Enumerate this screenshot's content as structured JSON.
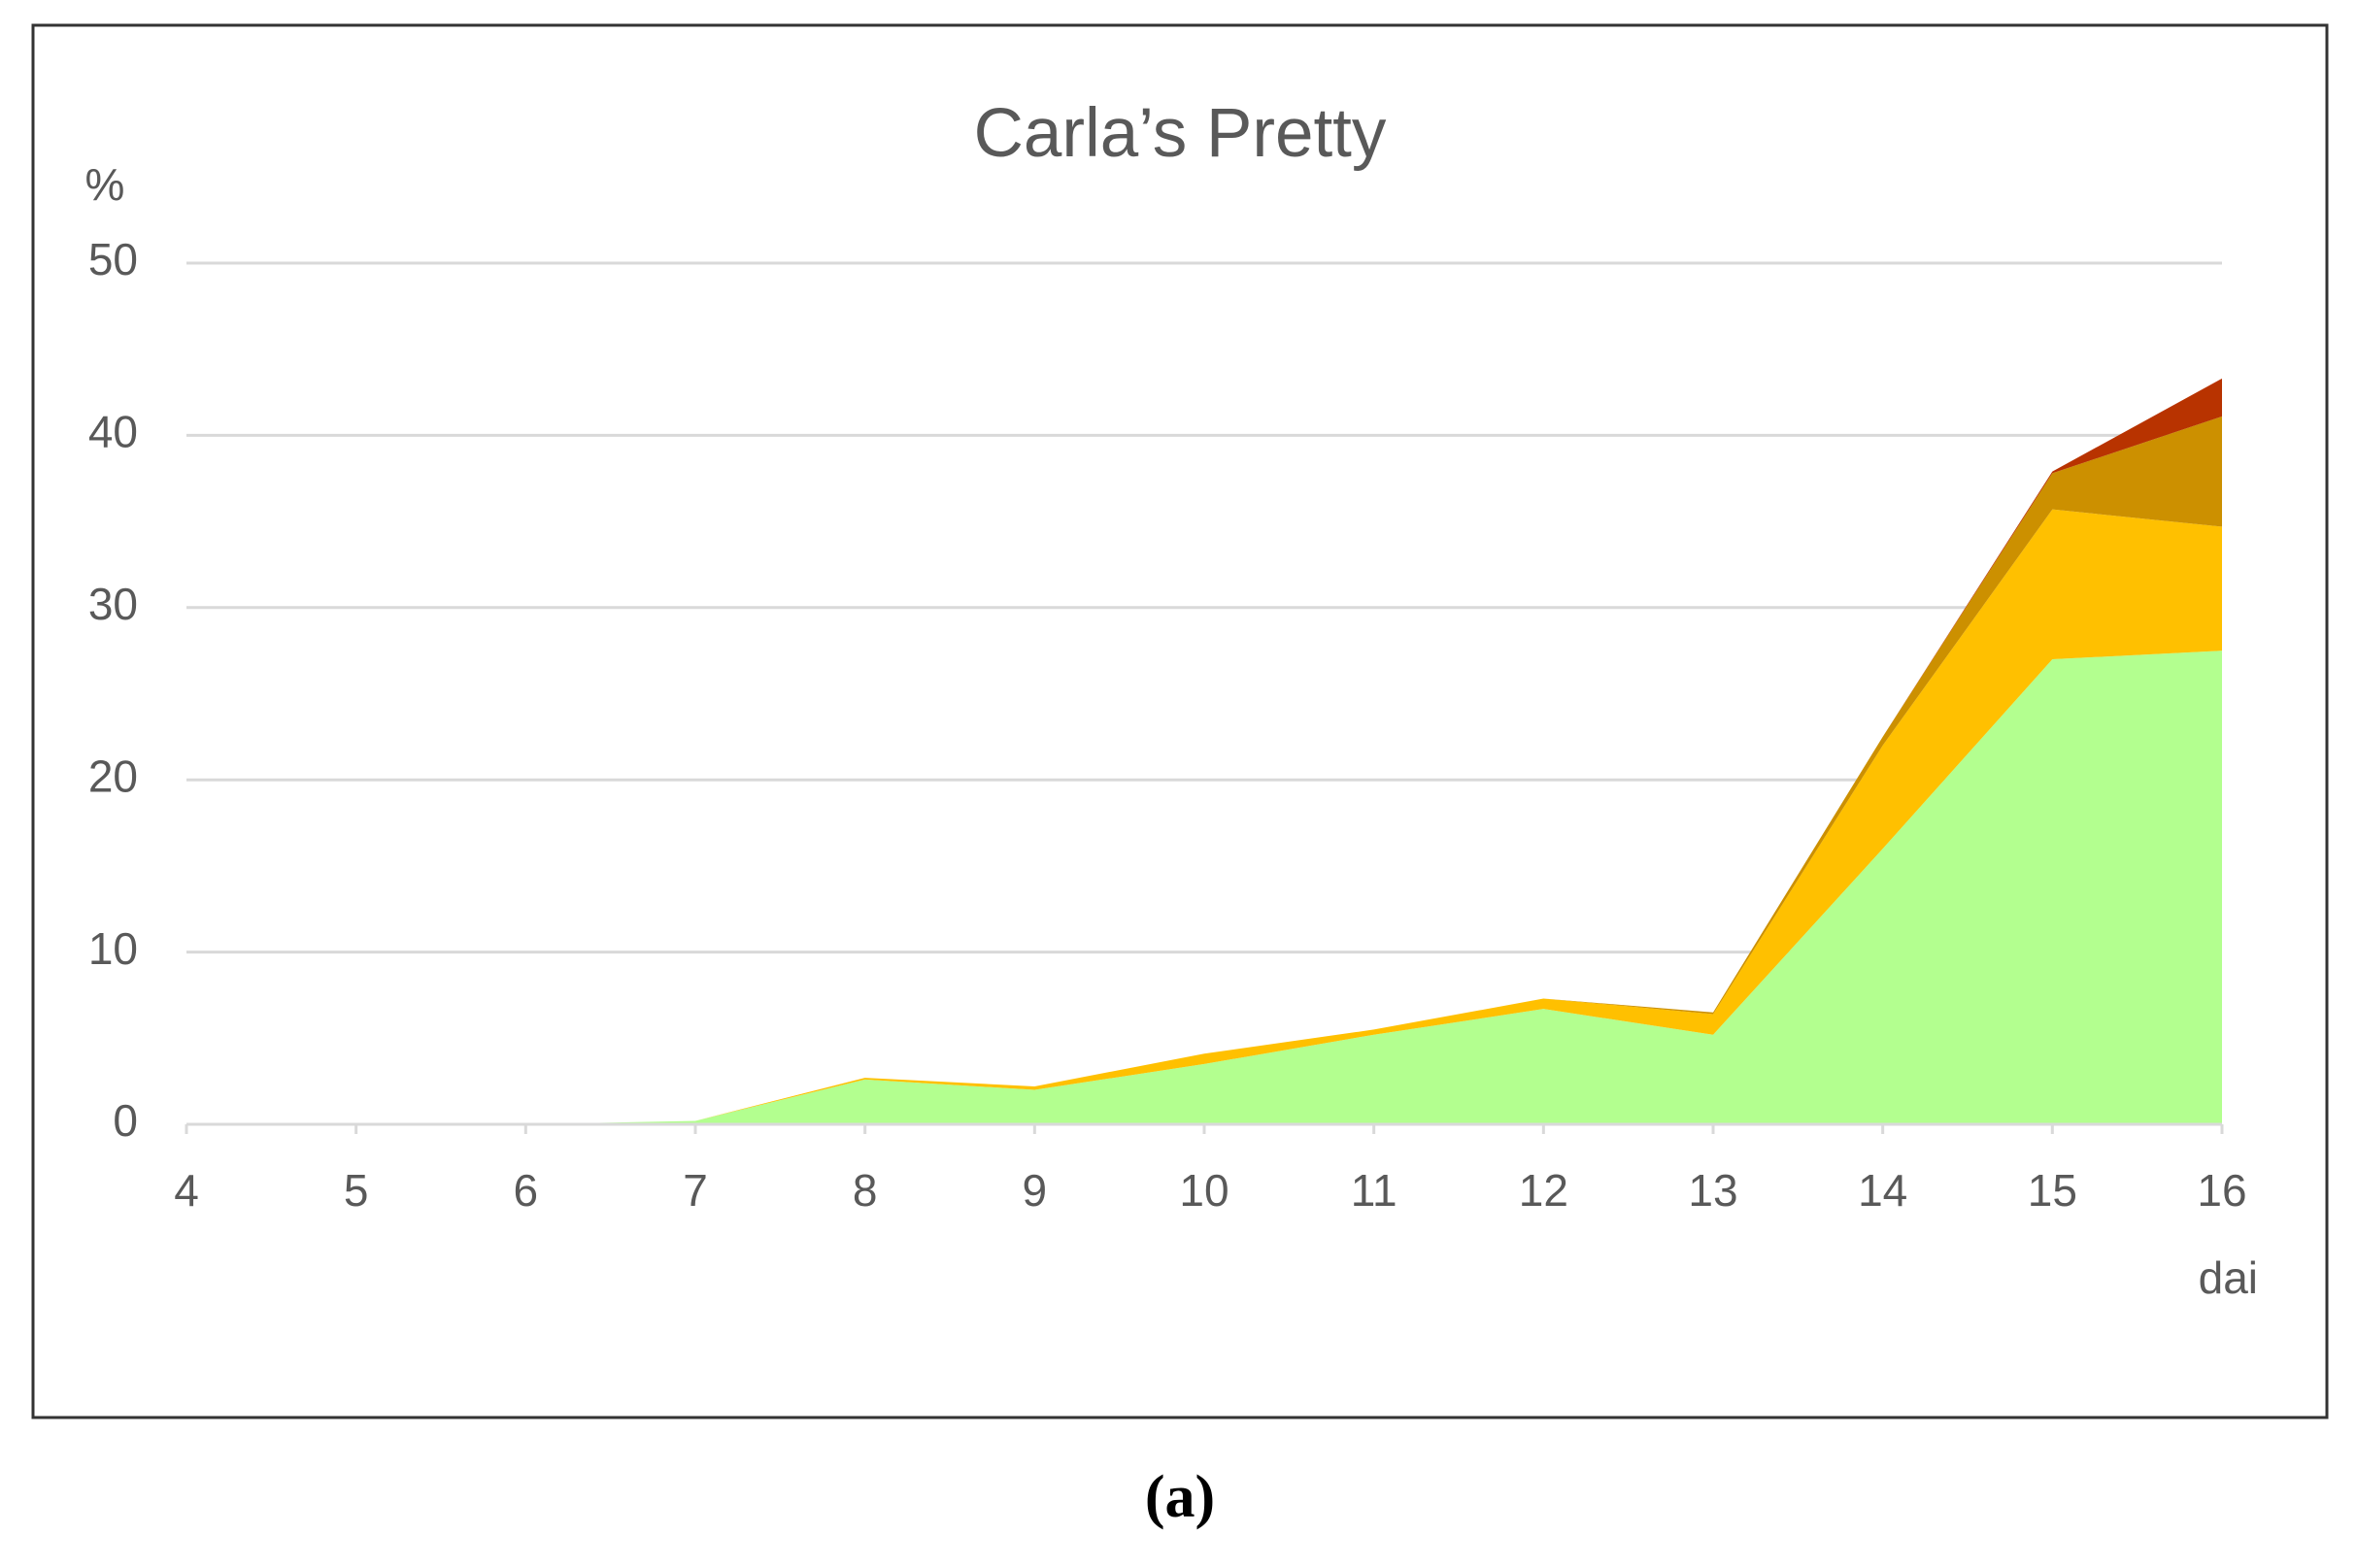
{
  "chart_data": {
    "type": "stacked_area",
    "title": "Carla’s Pretty",
    "ylabel": "%",
    "xlabel": "dai",
    "x": [
      4,
      5,
      6,
      7,
      8,
      9,
      10,
      11,
      12,
      13,
      14,
      15,
      16
    ],
    "series": [
      {
        "color": "#b3ff8f",
        "values": [
          0,
          0,
          0,
          0.2,
          2.6,
          2,
          3.5,
          5.2,
          6.7,
          5.2,
          16,
          27,
          27.5
        ]
      },
      {
        "color": "#ffc000",
        "values": [
          0,
          0,
          0,
          0,
          0.1,
          0.2,
          0.6,
          0.3,
          0.6,
          1.2,
          6,
          8.7,
          7.2
        ]
      },
      {
        "color": "#cc9000",
        "values": [
          0,
          0,
          0,
          0,
          0,
          0,
          0,
          0,
          0,
          0.1,
          0.5,
          2.1,
          6.4
        ]
      },
      {
        "color": "#b83300",
        "values": [
          0,
          0,
          0,
          0,
          0,
          0,
          0,
          0,
          0,
          0,
          0,
          0.1,
          2.2
        ]
      }
    ],
    "xlim": [
      4,
      16
    ],
    "xticks": [
      4,
      5,
      6,
      7,
      8,
      9,
      10,
      11,
      12,
      13,
      14,
      15,
      16
    ],
    "ylim": [
      0,
      50
    ],
    "yticks": [
      0,
      10,
      20,
      30,
      40,
      50
    ],
    "grid": true
  },
  "caption": "(a)"
}
